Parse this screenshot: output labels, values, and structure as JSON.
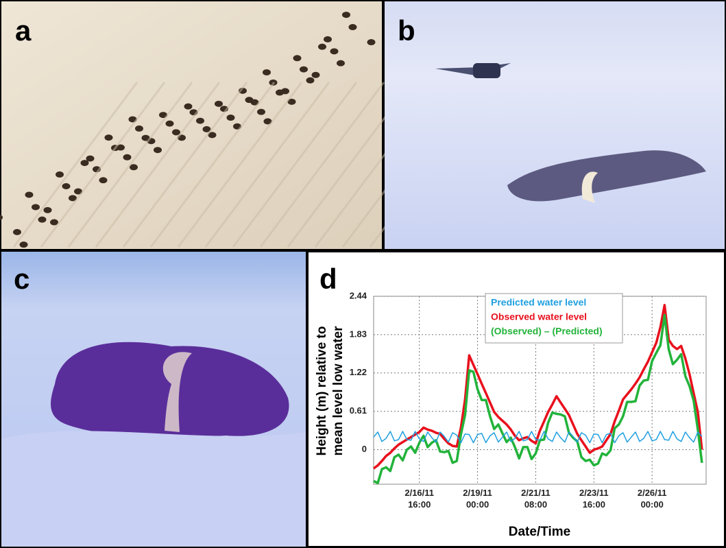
{
  "panel_labels": [
    "a",
    "b",
    "c",
    "d"
  ],
  "chart_data": {
    "type": "line",
    "ylabel": [
      "Height (m) relative to",
      "mean level low water"
    ],
    "xlabel": "Date/Time",
    "legend": "top",
    "grid": true,
    "x": [
      "2011-02-14 20:00",
      "2011-02-15 00:00",
      "2011-02-15 04:00",
      "2011-02-15 08:00",
      "2011-02-15 12:00",
      "2011-02-15 16:00",
      "2011-02-15 20:00",
      "2011-02-16 00:00",
      "2011-02-16 04:00",
      "2011-02-16 08:00",
      "2011-02-16 12:00",
      "2011-02-16 16:00",
      "2011-02-16 20:00",
      "2011-02-17 00:00",
      "2011-02-17 04:00",
      "2011-02-17 08:00",
      "2011-02-17 12:00",
      "2011-02-17 16:00",
      "2011-02-17 20:00",
      "2011-02-18 00:00",
      "2011-02-18 04:00",
      "2011-02-18 08:00",
      "2011-02-18 12:00",
      "2011-02-18 16:00",
      "2011-02-18 20:00",
      "2011-02-19 00:00",
      "2011-02-19 04:00",
      "2011-02-19 08:00",
      "2011-02-19 12:00",
      "2011-02-19 16:00",
      "2011-02-19 20:00",
      "2011-02-20 00:00",
      "2011-02-20 04:00",
      "2011-02-20 08:00",
      "2011-02-20 12:00",
      "2011-02-20 16:00",
      "2011-02-20 20:00",
      "2011-02-21 00:00",
      "2011-02-21 04:00",
      "2011-02-21 08:00",
      "2011-02-21 12:00",
      "2011-02-21 16:00",
      "2011-02-21 20:00",
      "2011-02-22 00:00",
      "2011-02-22 04:00",
      "2011-02-22 08:00",
      "2011-02-22 12:00",
      "2011-02-22 16:00",
      "2011-02-22 20:00",
      "2011-02-23 00:00",
      "2011-02-23 04:00",
      "2011-02-23 08:00",
      "2011-02-23 12:00",
      "2011-02-23 16:00",
      "2011-02-23 20:00",
      "2011-02-24 00:00",
      "2011-02-24 04:00",
      "2011-02-24 08:00",
      "2011-02-24 12:00",
      "2011-02-24 16:00",
      "2011-02-24 20:00",
      "2011-02-25 00:00",
      "2011-02-25 04:00",
      "2011-02-25 08:00",
      "2011-02-25 12:00",
      "2011-02-25 16:00",
      "2011-02-25 20:00",
      "2011-02-26 00:00",
      "2011-02-26 04:00",
      "2011-02-26 08:00",
      "2011-02-26 12:00",
      "2011-02-26 16:00",
      "2011-02-26 20:00",
      "2011-02-27 00:00",
      "2011-02-27 04:00",
      "2011-02-27 08:00",
      "2011-02-27 12:00",
      "2011-02-27 16:00",
      "2011-02-27 20:00",
      "2011-02-28 00:00"
    ],
    "series": [
      {
        "name": "Observed water level",
        "color": "#e8101c",
        "values": [
          -0.3,
          -0.25,
          -0.18,
          -0.1,
          -0.05,
          0.02,
          0.08,
          0.12,
          0.16,
          0.2,
          0.24,
          0.28,
          0.35,
          0.32,
          0.3,
          0.27,
          0.25,
          0.17,
          0.1,
          0.06,
          0.05,
          0.35,
          0.8,
          1.5,
          1.35,
          1.2,
          1.05,
          0.9,
          0.75,
          0.6,
          0.52,
          0.46,
          0.4,
          0.32,
          0.22,
          0.15,
          0.18,
          0.2,
          0.14,
          0.1,
          0.3,
          0.45,
          0.6,
          0.72,
          0.85,
          0.75,
          0.65,
          0.55,
          0.4,
          0.25,
          0.15,
          0.05,
          -0.05,
          0.0,
          0.02,
          0.05,
          0.15,
          0.25,
          0.45,
          0.62,
          0.8,
          0.88,
          0.96,
          1.05,
          1.15,
          1.28,
          1.4,
          1.55,
          1.7,
          1.95,
          2.3,
          1.75,
          1.65,
          1.6,
          1.65,
          1.45,
          1.2,
          0.9,
          0.6,
          0.0
        ]
      },
      {
        "name": "(Observed) – (Predicted)",
        "color": "#22b33a",
        "values": [
          -0.5,
          -0.53,
          -0.31,
          -0.28,
          -0.34,
          -0.12,
          -0.08,
          -0.17,
          0.0,
          0.05,
          -0.05,
          0.11,
          0.22,
          0.04,
          0.11,
          0.15,
          -0.03,
          -0.04,
          -0.02,
          -0.21,
          -0.18,
          0.24,
          0.55,
          1.26,
          1.24,
          0.96,
          0.79,
          0.79,
          0.53,
          0.33,
          0.4,
          0.26,
          0.12,
          0.19,
          0.04,
          -0.14,
          0.04,
          0.04,
          -0.15,
          -0.06,
          0.15,
          0.16,
          0.43,
          0.59,
          0.57,
          0.56,
          0.53,
          0.27,
          0.19,
          0.13,
          -0.12,
          -0.18,
          -0.16,
          -0.25,
          -0.22,
          -0.06,
          -0.09,
          -0.01,
          0.34,
          0.4,
          0.53,
          0.76,
          0.76,
          0.77,
          1.02,
          1.1,
          1.11,
          1.41,
          1.54,
          1.66,
          2.14,
          1.6,
          1.36,
          1.43,
          1.52,
          1.17,
          1.01,
          0.78,
          0.32,
          -0.21
        ]
      },
      {
        "name": "Predicted water level",
        "color": "#1f9fe0",
        "values": [
          0.2,
          0.28,
          0.13,
          0.18,
          0.29,
          0.14,
          0.16,
          0.29,
          0.16,
          0.15,
          0.29,
          0.17,
          0.13,
          0.28,
          0.19,
          0.12,
          0.28,
          0.21,
          0.12,
          0.27,
          0.23,
          0.11,
          0.25,
          0.24,
          0.11,
          0.24,
          0.26,
          0.11,
          0.22,
          0.27,
          0.12,
          0.2,
          0.28,
          0.13,
          0.18,
          0.29,
          0.14,
          0.16,
          0.29,
          0.16,
          0.15,
          0.29,
          0.17,
          0.13,
          0.28,
          0.19,
          0.12,
          0.28,
          0.21,
          0.12,
          0.27,
          0.23,
          0.11,
          0.25,
          0.24,
          0.11,
          0.24,
          0.26,
          0.11,
          0.22,
          0.27,
          0.12,
          0.2,
          0.28,
          0.13,
          0.18,
          0.29,
          0.14,
          0.16,
          0.29,
          0.16,
          0.15,
          0.29,
          0.17,
          0.13,
          0.28,
          0.19,
          0.12,
          0.28,
          0.21
        ]
      }
    ],
    "legend_order": null,
    "xlim": [
      "2011-02-14 20:00",
      "2011-02-28 04:00"
    ],
    "xticks": [
      {
        "value": "2011-02-16 16:00",
        "label": "2/16/11 16:00"
      },
      {
        "value": "2011-02-19 00:00",
        "label": "2/19/11 00:00"
      },
      {
        "value": "2011-02-21 08:00",
        "label": "2/21/11 08:00"
      },
      {
        "value": "2011-02-23 16:00",
        "label": "2/23/11 16:00"
      },
      {
        "value": "2011-02-26 00:00",
        "label": "2/26/11 00:00"
      }
    ],
    "ylim": [
      -0.55,
      2.44
    ],
    "yticks": [
      0,
      0.61,
      1.22,
      1.83,
      2.44
    ]
  }
}
